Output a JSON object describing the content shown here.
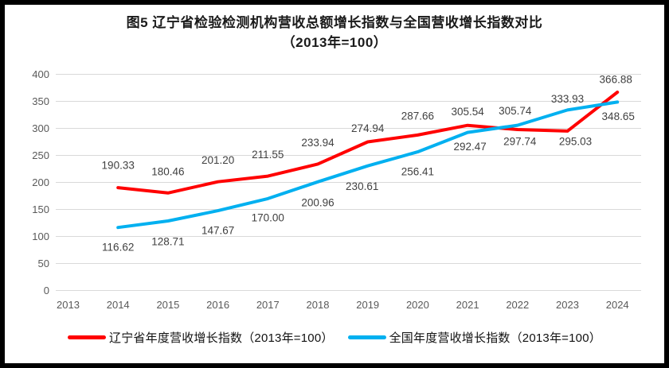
{
  "chart": {
    "title_line1": "图5  辽宁省检验检测机构营收总额增长指数与全国营收增长指数对比",
    "title_line2": "（2013年=100）"
  },
  "chart_data": {
    "type": "line",
    "title": "图5 辽宁省检验检测机构营收总额增长指数与全国营收增长指数对比（2013年=100）",
    "categories": [
      "2013",
      "2014",
      "2015",
      "2016",
      "2017",
      "2018",
      "2019",
      "2020",
      "2021",
      "2022",
      "2023",
      "2024"
    ],
    "ylim": [
      0,
      400
    ],
    "yticks": [
      0,
      50,
      100,
      150,
      200,
      250,
      300,
      350,
      400
    ],
    "grid": true,
    "legend_position": "bottom",
    "data_labels": true,
    "gridline_color": "#D9D9D9",
    "series": [
      {
        "name": "辽宁省年度营收增长指数（2013年=100）",
        "color": "#FF0000",
        "values": [
          null,
          190.33,
          180.46,
          201.2,
          211.55,
          233.94,
          274.94,
          287.66,
          305.54,
          297.74,
          295.03,
          366.88
        ],
        "label_dx": [
          null,
          0,
          0,
          0,
          0,
          0,
          0,
          0,
          0,
          3,
          10,
          -2
        ],
        "label_dy": [
          null,
          -28,
          -27,
          -27,
          -27,
          -27,
          -17,
          -24,
          -17,
          15,
          13,
          -16
        ]
      },
      {
        "name": "全国年度营收增长指数（2013年=100）",
        "color": "#00B0F0",
        "values": [
          null,
          116.62,
          128.71,
          147.67,
          170.0,
          200.96,
          230.61,
          256.41,
          292.47,
          305.74,
          333.93,
          348.65
        ],
        "label_dx": [
          null,
          0,
          0,
          0,
          0,
          0,
          -7,
          0,
          3,
          -3,
          0,
          1
        ],
        "label_dy": [
          null,
          25,
          26,
          25,
          24,
          26,
          26,
          25,
          18,
          -18,
          -14,
          18
        ]
      }
    ]
  }
}
